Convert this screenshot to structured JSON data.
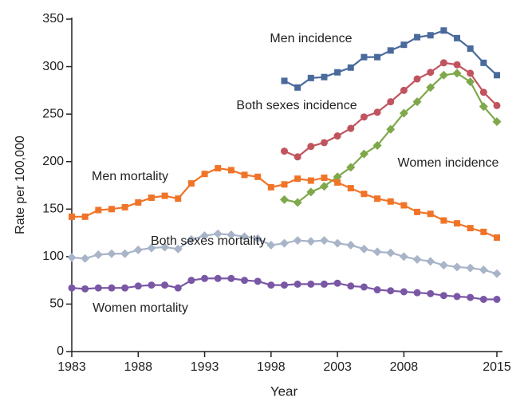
{
  "chart_data": {
    "type": "line",
    "x_label": "Year",
    "y_label": "Rate per 100,000",
    "x": [
      1983,
      1984,
      1985,
      1986,
      1987,
      1988,
      1989,
      1990,
      1991,
      1992,
      1993,
      1994,
      1995,
      1996,
      1997,
      1998,
      1999,
      2000,
      2001,
      2002,
      2003,
      2004,
      2005,
      2006,
      2007,
      2008,
      2009,
      2010,
      2011,
      2012,
      2013,
      2014,
      2015
    ],
    "xlim": [
      1983,
      2015
    ],
    "xticks": [
      1983,
      1988,
      1993,
      1998,
      2003,
      2008,
      2015
    ],
    "ylim": [
      0,
      350
    ],
    "yticks": [
      0,
      50,
      100,
      150,
      200,
      250,
      300,
      350
    ],
    "grid": false,
    "series": [
      {
        "name": "Men incidence",
        "color": "#4a6a9c",
        "marker": "square",
        "values": [
          null,
          null,
          null,
          null,
          null,
          null,
          null,
          null,
          null,
          null,
          null,
          null,
          null,
          null,
          null,
          null,
          285,
          278,
          288,
          289,
          294,
          299,
          310,
          310,
          317,
          323,
          331,
          333,
          338,
          330,
          319,
          304,
          291
        ]
      },
      {
        "name": "Both sexes incidence",
        "color": "#c0545e",
        "marker": "circle",
        "values": [
          null,
          null,
          null,
          null,
          null,
          null,
          null,
          null,
          null,
          null,
          null,
          null,
          null,
          null,
          null,
          null,
          211,
          205,
          216,
          220,
          227,
          235,
          247,
          252,
          263,
          275,
          287,
          294,
          304,
          302,
          293,
          273,
          259
        ]
      },
      {
        "name": "Women incidence",
        "color": "#7ea84a",
        "marker": "diamond",
        "values": [
          null,
          null,
          null,
          null,
          null,
          null,
          null,
          null,
          null,
          null,
          null,
          null,
          null,
          null,
          null,
          null,
          160,
          157,
          168,
          174,
          184,
          194,
          208,
          217,
          234,
          251,
          263,
          278,
          291,
          293,
          284,
          258,
          242
        ]
      },
      {
        "name": "Men mortality",
        "color": "#f07428",
        "marker": "square",
        "values": [
          142,
          142,
          149,
          150,
          152,
          157,
          162,
          164,
          161,
          177,
          187,
          193,
          191,
          186,
          184,
          173,
          176,
          182,
          180,
          183,
          178,
          172,
          166,
          161,
          158,
          154,
          147,
          145,
          138,
          135,
          130,
          126,
          120
        ]
      },
      {
        "name": "Both sexes mortality",
        "color": "#a8b4c8",
        "marker": "diamond",
        "values": [
          99,
          98,
          102,
          103,
          103,
          107,
          109,
          110,
          108,
          118,
          122,
          124,
          123,
          121,
          119,
          112,
          114,
          117,
          116,
          117,
          114,
          112,
          108,
          105,
          104,
          100,
          97,
          95,
          91,
          89,
          88,
          86,
          82
        ]
      },
      {
        "name": "Women mortality",
        "color": "#7a57a5",
        "marker": "circle",
        "values": [
          67,
          66,
          67,
          67,
          67,
          69,
          70,
          70,
          67,
          75,
          77,
          77,
          77,
          75,
          74,
          70,
          70,
          71,
          71,
          71,
          72,
          69,
          68,
          65,
          64,
          63,
          62,
          61,
          59,
          58,
          57,
          55,
          55
        ]
      }
    ]
  }
}
